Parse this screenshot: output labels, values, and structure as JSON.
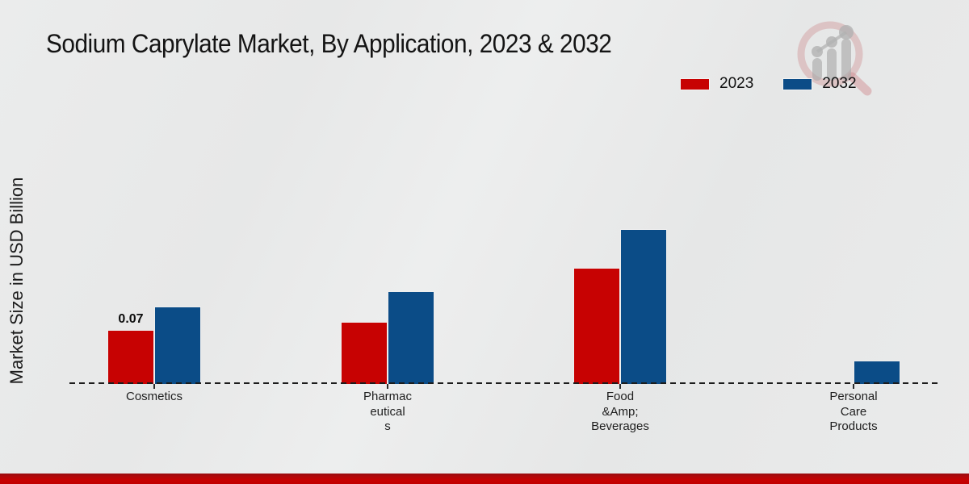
{
  "title": "Sodium Caprylate Market, By Application, 2023 & 2032",
  "ylabel": "Market Size in USD Billion",
  "legend": [
    {
      "label": "2023",
      "color": "#c70202"
    },
    {
      "label": "2032",
      "color": "#0b4c87"
    }
  ],
  "icons": {
    "watermark": "bar-chart-magnifier-logo"
  },
  "colors": {
    "series_2023": "#c70202",
    "series_2032": "#0b4c87",
    "background": "#e8e9e9",
    "bottom_ribbon": "#c10000",
    "axis": "#1c1c1c"
  },
  "chart_data": {
    "type": "bar",
    "title": "Sodium Caprylate Market, By Application, 2023 & 2032",
    "xlabel": "",
    "ylabel": "Market Size in USD Billion",
    "categories": [
      "Cosmetics",
      "Pharmac\neutical\ns",
      "Food\n&Amp;\nBeverages",
      "Personal\nCare\nProducts"
    ],
    "series": [
      {
        "name": "2023",
        "color": "#c70202",
        "values": [
          0.07,
          0.08,
          0.15,
          0.0
        ]
      },
      {
        "name": "2032",
        "color": "#0b4c87",
        "values": [
          0.1,
          0.12,
          0.2,
          0.03
        ]
      }
    ],
    "bar_labels": [
      [
        "0.07",
        "",
        "",
        ""
      ],
      [
        "",
        "",
        "",
        ""
      ]
    ],
    "ylim": [
      0,
      0.25
    ],
    "grid": false,
    "legend_position": "top-right",
    "baseline_style": "dashed"
  }
}
